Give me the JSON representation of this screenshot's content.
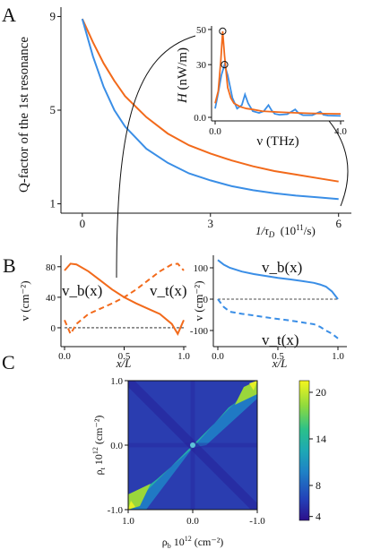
{
  "panel_letters": [
    "A",
    "B",
    "C"
  ],
  "colors": {
    "orange": "#f26a1b",
    "blue": "#3a8ee6",
    "axis": "#111111"
  },
  "chart_data": [
    {
      "id": "A-main",
      "type": "line",
      "ylabel": "Q-factor of the 1st resonance",
      "xlabel_parts": {
        "pre": "1/τ",
        "sub": "D",
        "post": "  (10",
        "sup": "11",
        "tail": "/s)"
      },
      "xticks": [
        "0",
        "3",
        "6"
      ],
      "yticks": [
        "1",
        "5",
        "9"
      ],
      "xlim": [
        -0.5,
        6.3
      ],
      "ylim": [
        0.6,
        9.4
      ],
      "grid": false,
      "x": [
        0,
        0.25,
        0.5,
        0.75,
        1,
        1.5,
        2,
        2.5,
        3,
        3.5,
        4,
        4.5,
        5,
        5.5,
        6
      ],
      "series": [
        {
          "color": "orange",
          "values": [
            8.9,
            7.9,
            7.0,
            6.25,
            5.6,
            4.7,
            4.0,
            3.5,
            3.15,
            2.85,
            2.6,
            2.4,
            2.25,
            2.1,
            1.95
          ]
        },
        {
          "color": "blue",
          "values": [
            8.9,
            7.3,
            6.0,
            5.0,
            4.3,
            3.35,
            2.75,
            2.3,
            2.0,
            1.75,
            1.58,
            1.45,
            1.35,
            1.28,
            1.2
          ]
        }
      ]
    },
    {
      "id": "A-inset",
      "type": "line",
      "ylabel_parts": {
        "sym": "H",
        "unit": " (nW/m)"
      },
      "xlabel": "ν (THz)",
      "xticks": [
        "0.0",
        "4.0"
      ],
      "yticks": [
        "0.0",
        "30",
        "50"
      ],
      "xlim": [
        0,
        4.0
      ],
      "ylim": [
        0,
        52
      ],
      "grid": false,
      "markers": [
        {
          "x": 0.24,
          "y": 49,
          "series": "orange"
        },
        {
          "x": 0.3,
          "y": 30,
          "series": "blue"
        }
      ],
      "series": [
        {
          "color": "orange",
          "x": [
            0,
            0.1,
            0.18,
            0.24,
            0.3,
            0.4,
            0.5,
            0.6,
            0.8,
            1.0,
            1.2,
            1.5,
            2.0,
            2.5,
            3.0,
            3.5,
            4.0
          ],
          "values": [
            8,
            15,
            32,
            49,
            35,
            17,
            11,
            8,
            6,
            5,
            4.5,
            3.5,
            3,
            2.6,
            2.3,
            2.1,
            2
          ]
        },
        {
          "color": "blue",
          "x": [
            0,
            0.1,
            0.2,
            0.3,
            0.4,
            0.55,
            0.7,
            0.85,
            0.95,
            1.05,
            1.2,
            1.4,
            1.55,
            1.7,
            1.8,
            1.9,
            2.05,
            2.3,
            2.55,
            2.65,
            2.8,
            3.1,
            3.35,
            3.45,
            3.6,
            3.8,
            4.0
          ],
          "values": [
            5,
            14,
            24,
            30,
            24,
            11,
            5,
            7,
            13,
            8,
            3.5,
            2.5,
            3.5,
            7,
            4,
            2,
            1.5,
            1.8,
            4.5,
            2.5,
            1.2,
            1.2,
            3.2,
            1.5,
            1.0,
            0.9,
            0.8
          ]
        }
      ]
    },
    {
      "id": "B-left",
      "type": "line",
      "ylabel": "v (cm⁻²)",
      "xlabel": "x/L",
      "xticks": [
        "0.0",
        "0.5",
        "1.0"
      ],
      "yticks": [
        "0",
        "40",
        "80"
      ],
      "xlim": [
        0,
        1
      ],
      "ylim": [
        -20,
        95
      ],
      "reference_line": 0,
      "labels": {
        "vb": "v_b(x)",
        "vt": "v_t(x)"
      },
      "x": [
        0,
        0.05,
        0.1,
        0.2,
        0.3,
        0.4,
        0.5,
        0.6,
        0.7,
        0.8,
        0.9,
        0.95,
        1.0
      ],
      "series": [
        {
          "name": "v_b(x)",
          "color": "orange",
          "dash": false,
          "values": [
            75,
            84,
            83,
            74,
            62,
            50,
            40,
            32,
            25,
            18,
            5,
            -8,
            10
          ]
        },
        {
          "name": "v_t(x)",
          "color": "orange",
          "dash": true,
          "values": [
            10,
            -8,
            5,
            18,
            25,
            32,
            40,
            50,
            62,
            74,
            83,
            84,
            75
          ]
        }
      ]
    },
    {
      "id": "B-right",
      "type": "line",
      "ylabel": "v (cm⁻²)",
      "xlabel": "x/L",
      "xticks": [
        "0.0",
        "0.5",
        "1.0"
      ],
      "yticks": [
        "-100",
        "0",
        "100"
      ],
      "xlim": [
        0,
        1
      ],
      "ylim": [
        -140,
        140
      ],
      "reference_line": 0,
      "labels": {
        "vb": "v_b(x)",
        "vt": "v_t(x)"
      },
      "x": [
        0,
        0.05,
        0.1,
        0.2,
        0.3,
        0.4,
        0.5,
        0.6,
        0.7,
        0.8,
        0.85,
        0.9,
        0.95,
        1.0
      ],
      "series": [
        {
          "name": "v_b(x)",
          "color": "blue",
          "dash": false,
          "values": [
            125,
            110,
            100,
            88,
            80,
            74,
            68,
            63,
            58,
            52,
            47,
            40,
            25,
            0
          ]
        },
        {
          "name": "v_t(x)",
          "color": "blue",
          "dash": true,
          "values": [
            0,
            -25,
            -40,
            -47,
            -52,
            -58,
            -63,
            -68,
            -74,
            -80,
            -88,
            -100,
            -110,
            -125
          ]
        }
      ]
    },
    {
      "id": "C",
      "type": "heatmap",
      "xlabel_parts": {
        "pre": "ρ",
        "sub": "b",
        "post": " 10",
        "sup": "12",
        "tail": " (cm⁻²)"
      },
      "ylabel_parts": {
        "pre": "ρ",
        "sub": "t",
        "post": " 10",
        "sup": "12",
        "tail": " (cm⁻²)"
      },
      "xticks": [
        "1.0",
        "0.0",
        "-1.0"
      ],
      "yticks": [
        "1.0",
        "0.0",
        "-1.0"
      ],
      "xlim": [
        1.0,
        -1.0
      ],
      "ylim": [
        -1.0,
        1.0
      ],
      "colorbar": {
        "ticks": [
          "4",
          "8",
          "14",
          "20"
        ],
        "min": 3.5,
        "max": 21.5
      }
    }
  ]
}
